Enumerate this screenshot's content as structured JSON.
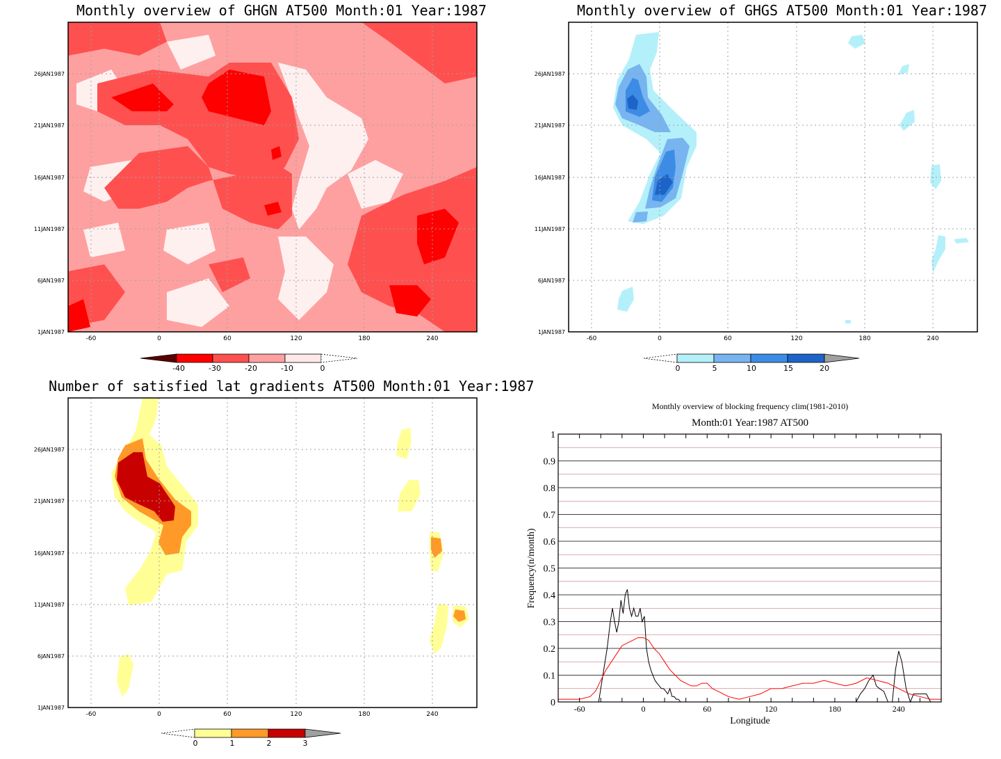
{
  "panels": {
    "ghgn": {
      "title": "Monthly overview of GHGN AT500 Month:01 Year:1987",
      "xticks": [
        "-60",
        "0",
        "60",
        "120",
        "180",
        "240"
      ],
      "yticks": [
        "1JAN1987",
        "6JAN1987",
        "11JAN1987",
        "16JAN1987",
        "21JAN1987",
        "26JAN1987"
      ],
      "colorbar": {
        "labels": [
          "-40",
          "-30",
          "-20",
          "-10",
          "0"
        ],
        "colors": [
          "#5a0000",
          "#ff0000",
          "#ff5050",
          "#ffa0a0",
          "#ffe8e8"
        ]
      }
    },
    "ghgs": {
      "title": "Monthly overview of GHGS AT500 Month:01 Year:1987",
      "xticks": [
        "-60",
        "0",
        "60",
        "120",
        "180",
        "240"
      ],
      "yticks": [
        "1JAN1987",
        "6JAN1987",
        "11JAN1987",
        "16JAN1987",
        "21JAN1987",
        "26JAN1987"
      ],
      "colorbar": {
        "labels": [
          "0",
          "5",
          "10",
          "15",
          "20"
        ],
        "colors": [
          "#b4f0fa",
          "#78b4f0",
          "#3c8ce6",
          "#1e64c8",
          "#a0a0a0"
        ]
      }
    },
    "lat": {
      "title": "Number of satisfied lat gradients AT500 Month:01 Year:1987",
      "xticks": [
        "-60",
        "0",
        "60",
        "120",
        "180",
        "240"
      ],
      "yticks": [
        "1JAN1987",
        "6JAN1987",
        "11JAN1987",
        "16JAN1987",
        "21JAN1987",
        "26JAN1987"
      ],
      "colorbar": {
        "labels": [
          "0",
          "1",
          "2",
          "3"
        ],
        "colors": [
          "#ffff96",
          "#ff9a28",
          "#c80000",
          "#a0a0a0"
        ]
      }
    },
    "freq": {
      "title": "Monthly overview of blocking frequency clim(1981-2010)",
      "subtitle": "Month:01 Year:1987  AT500",
      "xlabel": "Longitude",
      "ylabel": "Frequency(n/month)",
      "xticks": [
        "-60",
        "0",
        "60",
        "120",
        "180",
        "240"
      ],
      "yticks": [
        "0",
        "0.1",
        "0.2",
        "0.3",
        "0.4",
        "0.5",
        "0.6",
        "0.7",
        "0.8",
        "0.9",
        "1"
      ]
    }
  },
  "chart_data": [
    {
      "type": "heatmap",
      "title": "Monthly overview of GHGN AT500 Month:01 Year:1987",
      "x_range": [
        -80,
        280
      ],
      "y_range": [
        "1JAN1987",
        "31JAN1987"
      ],
      "levels": [
        -40,
        -30,
        -20,
        -10,
        0
      ],
      "colors": [
        "#5a0000",
        "#ff0000",
        "#ff5050",
        "#ffa0a0",
        "#ffe8e8"
      ]
    },
    {
      "type": "heatmap",
      "title": "Monthly overview of GHGS AT500 Month:01 Year:1987",
      "x_range": [
        -80,
        280
      ],
      "y_range": [
        "1JAN1987",
        "31JAN1987"
      ],
      "levels": [
        0,
        5,
        10,
        15,
        20
      ],
      "colors": [
        "#b4f0fa",
        "#78b4f0",
        "#3c8ce6",
        "#1e64c8",
        "#a0a0a0"
      ]
    },
    {
      "type": "heatmap",
      "title": "Number of satisfied lat gradients AT500 Month:01 Year:1987",
      "x_range": [
        -80,
        280
      ],
      "y_range": [
        "1JAN1987",
        "31JAN1987"
      ],
      "levels": [
        0,
        1,
        2,
        3
      ],
      "colors": [
        "#ffff96",
        "#ff9a28",
        "#c80000",
        "#a0a0a0"
      ]
    },
    {
      "type": "line",
      "title": "Monthly overview of blocking frequency clim(1981-2010)",
      "subtitle": "Month:01 Year:1987  AT500",
      "xlabel": "Longitude",
      "ylabel": "Frequency(n/month)",
      "xlim": [
        -80,
        280
      ],
      "ylim": [
        0,
        1
      ],
      "grid": true,
      "series": [
        {
          "color": "#000000",
          "x": [
            -80,
            -42,
            -38,
            -34,
            -31,
            -29,
            -27,
            -25,
            -23,
            -21,
            -19,
            -17,
            -15,
            -13,
            -11,
            -9,
            -7,
            -5,
            -3,
            -1,
            1,
            3,
            5,
            7,
            9,
            11,
            13,
            15,
            17,
            19,
            21,
            23,
            25,
            27,
            29,
            31,
            33,
            35,
            280
          ],
          "y": [
            0,
            0,
            0.1,
            0.2,
            0.3,
            0.35,
            0.3,
            0.26,
            0.3,
            0.38,
            0.33,
            0.4,
            0.42,
            0.35,
            0.32,
            0.35,
            0.32,
            0.32,
            0.35,
            0.3,
            0.32,
            0.2,
            0.15,
            0.12,
            0.1,
            0.08,
            0.07,
            0.06,
            0.05,
            0.05,
            0.04,
            0.03,
            0.05,
            0.02,
            0.02,
            0.01,
            0.01,
            0,
            0
          ]
        },
        {
          "color": "#000000",
          "x": [
            200,
            204,
            208,
            212,
            216,
            219,
            222,
            226,
            230,
            234,
            237,
            240,
            243,
            247,
            251,
            254,
            258,
            262,
            266,
            270
          ],
          "y": [
            0,
            0.03,
            0.05,
            0.08,
            0.1,
            0.06,
            0.05,
            0.04,
            0,
            0,
            0.12,
            0.19,
            0.15,
            0.05,
            0,
            0.03,
            0.03,
            0.03,
            0.03,
            0
          ]
        },
        {
          "color": "#ff0000",
          "x": [
            -80,
            -70,
            -60,
            -50,
            -45,
            -40,
            -35,
            -30,
            -25,
            -20,
            -15,
            -10,
            -5,
            0,
            5,
            10,
            15,
            20,
            25,
            30,
            35,
            40,
            45,
            50,
            55,
            60,
            65,
            70,
            75,
            80,
            90,
            100,
            110,
            120,
            130,
            140,
            150,
            160,
            170,
            180,
            190,
            200,
            210,
            220,
            230,
            240,
            250,
            260,
            270,
            280
          ],
          "y": [
            0.01,
            0.01,
            0.01,
            0.02,
            0.04,
            0.08,
            0.12,
            0.15,
            0.18,
            0.21,
            0.22,
            0.23,
            0.24,
            0.24,
            0.23,
            0.2,
            0.18,
            0.15,
            0.12,
            0.1,
            0.08,
            0.07,
            0.06,
            0.06,
            0.07,
            0.07,
            0.05,
            0.04,
            0.03,
            0.02,
            0.01,
            0.02,
            0.03,
            0.05,
            0.05,
            0.06,
            0.07,
            0.07,
            0.08,
            0.07,
            0.06,
            0.07,
            0.09,
            0.08,
            0.07,
            0.05,
            0.03,
            0.02,
            0.01,
            0.01
          ]
        }
      ]
    }
  ]
}
